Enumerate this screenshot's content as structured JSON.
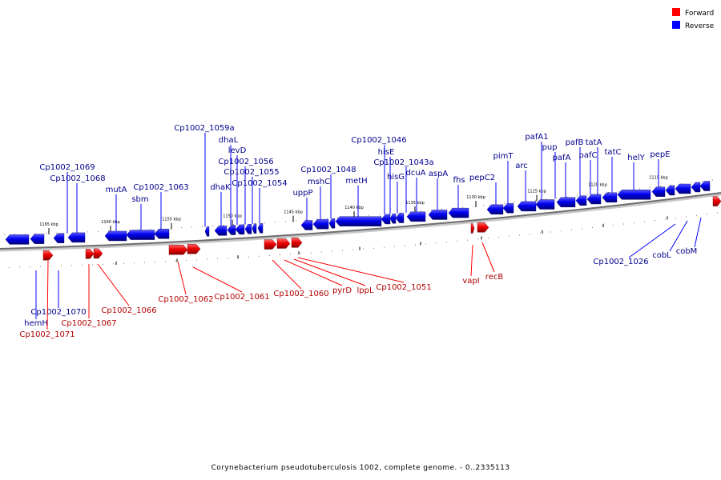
{
  "title": "Corynebacterium pseudotuberculosis 1002, complete genome. - 0..2335113",
  "legend": [
    {
      "label": "Forward",
      "color": "#ff0000"
    },
    {
      "label": "Reverse",
      "color": "#0000ff"
    }
  ],
  "ticks": [
    "1165 kbp",
    "1160 kbp",
    "1155 kbp",
    "1150 kbp",
    "1145 kbp",
    "1140 kbp",
    "1135 kbp",
    "1130 kbp",
    "1125 kbp",
    "1120 kbp",
    "1115 kbp"
  ],
  "reverse_genes": [
    "Cp1002_1069",
    "Cp1002_1068",
    "mutA",
    "sbm",
    "Cp1002_1063",
    "Cp1002_1059a",
    "dhaL",
    "levD",
    "dhaK",
    "Cp1002_1056",
    "Cp1002_1055",
    "Cp1002_1054",
    "uppP",
    "Cp1002_1048",
    "mshC",
    "metH",
    "Cp1002_1046",
    "hisE",
    "Cp1002_1043a",
    "hisG",
    "dcuA",
    "aspA",
    "fhs",
    "pepC2",
    "pimT",
    "arc",
    "pafA1",
    "pup",
    "pafA",
    "pafB",
    "tatA",
    "pafC",
    "tatC",
    "helY",
    "pepE",
    "Cp1002_1026",
    "cobL",
    "cobM",
    "Cp1002_1070",
    "hemH"
  ],
  "forward_genes": [
    "Cp1002_1071",
    "Cp1002_1067",
    "Cp1002_1066",
    "Cp1002_1062",
    "Cp1002_1061",
    "Cp1002_1060",
    "pyrD",
    "lppL",
    "Cp1002_1051",
    "vapI",
    "recB"
  ]
}
